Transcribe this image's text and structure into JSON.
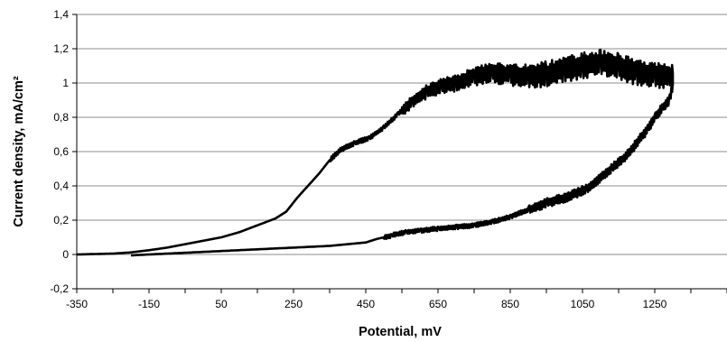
{
  "chart_data": {
    "type": "line",
    "title": "",
    "xlabel": "Potential, mV",
    "ylabel": "Current density, mA/cm²",
    "xlim": [
      -350,
      1450
    ],
    "ylim": [
      -0.2,
      1.4
    ],
    "xticks": [
      -350,
      -150,
      50,
      250,
      450,
      650,
      850,
      1050,
      1250
    ],
    "xtick_labels": [
      "-350",
      "-150",
      "50",
      "250",
      "450",
      "650",
      "850",
      "1050",
      "1250"
    ],
    "yticks": [
      -0.2,
      0,
      0.2,
      0.4,
      0.6,
      0.8,
      1,
      1.2,
      1.4
    ],
    "ytick_labels": [
      "-0,2",
      "0",
      "0,2",
      "0,4",
      "0,6",
      "0,8",
      "1",
      "1,2",
      "1,4"
    ],
    "grid": "horizontal",
    "legend": "none",
    "series": [
      {
        "color": "#000000",
        "note_noise": "forward and reverse sweep; current trace is noisy above ~550 mV",
        "x": [
          -350,
          -250,
          -200,
          -150,
          -100,
          -50,
          0,
          50,
          100,
          150,
          200,
          230,
          260,
          290,
          320,
          350,
          380,
          420,
          460,
          500,
          540,
          580,
          620,
          660,
          700,
          750,
          800,
          850,
          900,
          950,
          1000,
          1050,
          1100,
          1150,
          1200,
          1250,
          1290,
          1300,
          1300,
          1290,
          1270,
          1250,
          1230,
          1200,
          1170,
          1130,
          1100,
          1060,
          1000,
          950,
          900,
          850,
          800,
          750,
          700,
          650,
          600,
          560,
          520,
          480,
          450,
          400,
          350,
          300,
          250,
          200,
          150,
          100,
          50,
          0,
          -50,
          -100,
          -150,
          -200
        ],
        "y": [
          0,
          0.005,
          0.012,
          0.025,
          0.04,
          0.06,
          0.08,
          0.1,
          0.13,
          0.17,
          0.21,
          0.25,
          0.33,
          0.4,
          0.47,
          0.55,
          0.61,
          0.65,
          0.68,
          0.74,
          0.82,
          0.89,
          0.95,
          0.98,
          1.0,
          1.04,
          1.06,
          1.05,
          1.04,
          1.05,
          1.08,
          1.1,
          1.12,
          1.1,
          1.06,
          1.05,
          1.04,
          1.03,
          0.98,
          0.9,
          0.85,
          0.8,
          0.73,
          0.65,
          0.57,
          0.5,
          0.45,
          0.38,
          0.33,
          0.3,
          0.26,
          0.22,
          0.19,
          0.17,
          0.16,
          0.15,
          0.14,
          0.13,
          0.11,
          0.09,
          0.07,
          0.06,
          0.05,
          0.045,
          0.04,
          0.035,
          0.03,
          0.025,
          0.02,
          0.015,
          0.01,
          0.005,
          0.0,
          -0.005
        ]
      }
    ]
  }
}
